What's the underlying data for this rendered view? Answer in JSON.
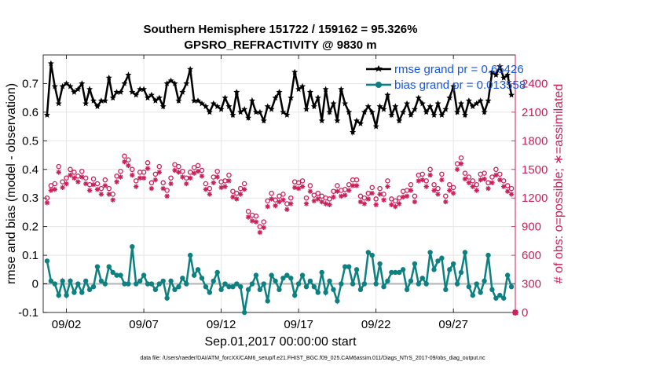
{
  "chart_data": {
    "type": "line",
    "title": "Southern Hemisphere 151722 / 159162 = 95.326%",
    "subtitle": "GPSRO_REFRACTIVITY @ 9830 m",
    "xlabel": "Sep.01,2017 00:00:00 start",
    "ylabel_left": "rmse and bias (model - observation)",
    "ylabel_right": "# of obs: o=possible; ∗=assimilated",
    "footnote": "data file: /Users/raeder/DAI/ATM_forcXX/CAM6_setup/f.e21.FHIST_BGC.f09_025.CAM6assim.011/Diags_NTrS_2017-09/obs_diag_output.nc",
    "xlim": [
      0.5,
      31
    ],
    "ylim_left": [
      -0.1,
      0.8
    ],
    "ylim_right": [
      0,
      2700
    ],
    "x_ticks": [
      2,
      7,
      12,
      17,
      22,
      27
    ],
    "x_tick_labels": [
      "09/02",
      "09/07",
      "09/12",
      "09/17",
      "09/22",
      "09/27"
    ],
    "y_ticks_left": [
      -0.1,
      0,
      0.1,
      0.2,
      0.3,
      0.4,
      0.5,
      0.6,
      0.7
    ],
    "y_tick_labels_left": [
      "-0.1",
      "0",
      "0.1",
      "0.2",
      "0.3",
      "0.4",
      "0.5",
      "0.6",
      "0.7"
    ],
    "y_ticks_right": [
      0,
      300,
      600,
      900,
      1200,
      1500,
      1800,
      2100,
      2400
    ],
    "y_tick_labels_right": [
      "0",
      "300",
      "600",
      "900",
      "1200",
      "1500",
      "1800",
      "2100",
      "2400"
    ],
    "x": [
      0.75,
      1.0,
      1.25,
      1.5,
      1.75,
      2.0,
      2.25,
      2.5,
      2.75,
      3.0,
      3.25,
      3.5,
      3.75,
      4.0,
      4.25,
      4.5,
      4.75,
      5.0,
      5.25,
      5.5,
      5.75,
      6.0,
      6.25,
      6.5,
      6.75,
      7.0,
      7.25,
      7.5,
      7.75,
      8.0,
      8.25,
      8.5,
      8.75,
      9.0,
      9.25,
      9.5,
      9.75,
      10.0,
      10.25,
      10.5,
      10.75,
      11.0,
      11.25,
      11.5,
      11.75,
      12.0,
      12.25,
      12.5,
      12.75,
      13.0,
      13.25,
      13.5,
      13.75,
      14.0,
      14.25,
      14.5,
      14.75,
      15.0,
      15.25,
      15.5,
      15.75,
      16.0,
      16.25,
      16.5,
      16.75,
      17.0,
      17.25,
      17.5,
      17.75,
      18.0,
      18.25,
      18.5,
      18.75,
      19.0,
      19.25,
      19.5,
      19.75,
      20.0,
      20.25,
      20.5,
      20.75,
      21.0,
      21.25,
      21.5,
      21.75,
      22.0,
      22.25,
      22.5,
      22.75,
      23.0,
      23.25,
      23.5,
      23.75,
      24.0,
      24.25,
      24.5,
      24.75,
      25.0,
      25.25,
      25.5,
      25.75,
      26.0,
      26.25,
      26.5,
      26.75,
      27.0,
      27.25,
      27.5,
      27.75,
      28.0,
      28.25,
      28.5,
      28.75,
      29.0,
      29.25,
      29.5,
      29.75,
      30.0,
      30.25,
      30.5,
      30.75
    ],
    "series": [
      {
        "name": "rmse grand pr = 0.65426",
        "color": "#000000",
        "marker": "star-filled",
        "values": [
          0.59,
          0.77,
          0.69,
          0.63,
          0.69,
          0.7,
          0.69,
          0.67,
          0.68,
          0.7,
          0.63,
          0.68,
          0.64,
          0.62,
          0.64,
          0.64,
          0.72,
          0.65,
          0.67,
          0.67,
          0.7,
          0.73,
          0.67,
          0.66,
          0.68,
          0.68,
          0.65,
          0.66,
          0.64,
          0.65,
          0.62,
          0.7,
          0.71,
          0.7,
          0.64,
          0.67,
          0.7,
          0.75,
          0.64,
          0.64,
          0.63,
          0.62,
          0.6,
          0.63,
          0.62,
          0.61,
          0.65,
          0.62,
          0.59,
          0.67,
          0.6,
          0.61,
          0.58,
          0.64,
          0.6,
          0.6,
          0.57,
          0.62,
          0.61,
          0.65,
          0.67,
          0.6,
          0.59,
          0.65,
          0.74,
          0.68,
          0.69,
          0.61,
          0.67,
          0.62,
          0.65,
          0.57,
          0.68,
          0.6,
          0.63,
          0.57,
          0.68,
          0.63,
          0.6,
          0.53,
          0.57,
          0.56,
          0.6,
          0.62,
          0.6,
          0.55,
          0.62,
          0.61,
          0.66,
          0.59,
          0.62,
          0.57,
          0.6,
          0.63,
          0.59,
          0.61,
          0.65,
          0.63,
          0.6,
          0.62,
          0.59,
          0.63,
          0.59,
          0.61,
          0.65,
          0.69,
          0.6,
          0.63,
          0.59,
          0.64,
          0.62,
          0.63,
          0.64,
          0.6,
          0.64,
          0.74,
          0.73,
          0.76,
          0.72,
          0.73,
          0.66
        ]
      },
      {
        "name": "bias grand pr = 0.013558",
        "color": "#0d8080",
        "marker": "circle-filled",
        "values": [
          0.08,
          0.01,
          0.0,
          -0.04,
          0.01,
          -0.04,
          0.01,
          -0.03,
          0.0,
          -0.03,
          0.01,
          -0.02,
          -0.01,
          0.06,
          0.01,
          0.0,
          0.06,
          0.04,
          0.03,
          0.03,
          0.0,
          0.0,
          0.13,
          0.0,
          0.01,
          0.03,
          0.0,
          0.0,
          -0.02,
          0.0,
          0.01,
          -0.05,
          0.01,
          -0.02,
          -0.01,
          0.02,
          0.0,
          0.1,
          0.03,
          0.05,
          0.02,
          -0.01,
          -0.03,
          0.01,
          0.04,
          -0.02,
          0.0,
          -0.01,
          -0.01,
          0.0,
          -0.01,
          -0.1,
          -0.02,
          0.0,
          0.03,
          -0.02,
          0.0,
          -0.06,
          0.03,
          0.01,
          -0.02,
          0.02,
          0.03,
          0.02,
          -0.04,
          0.0,
          0.03,
          -0.01,
          0.01,
          -0.01,
          -0.03,
          0.04,
          -0.03,
          0.01,
          -0.02,
          -0.06,
          0.0,
          0.06,
          0.06,
          0.0,
          0.05,
          -0.02,
          0.0,
          0.11,
          0.1,
          0.0,
          0.07,
          -0.01,
          0.01,
          0.04,
          0.04,
          0.04,
          0.05,
          -0.02,
          0.01,
          0.07,
          0.0,
          0.02,
          0.0,
          0.11,
          0.05,
          0.08,
          0.09,
          -0.02,
          0.05,
          0.07,
          0.0,
          0.04,
          0.11,
          -0.01,
          -0.04,
          0.0,
          -0.03,
          0.01,
          0.1,
          -0.02,
          -0.05,
          -0.04,
          -0.05,
          0.03,
          -0.01
        ]
      },
      {
        "name": "possible",
        "axis": "right",
        "color": "#cc1f5a",
        "marker": "open-circle",
        "values": [
          1200,
          1330,
          1350,
          1530,
          1370,
          1410,
          1500,
          1470,
          1430,
          1480,
          1410,
          1340,
          1400,
          1350,
          1300,
          1390,
          1300,
          1240,
          1430,
          1480,
          1640,
          1600,
          1500,
          1380,
          1470,
          1470,
          1570,
          1360,
          1450,
          1530,
          1360,
          1280,
          1410,
          1550,
          1530,
          1480,
          1410,
          1470,
          1520,
          1540,
          1490,
          1350,
          1300,
          1420,
          1480,
          1370,
          1380,
          1440,
          1270,
          1250,
          1300,
          1350,
          1060,
          1020,
          1010,
          900,
          950,
          1170,
          1250,
          1180,
          1220,
          1240,
          1140,
          1200,
          1370,
          1360,
          1380,
          1200,
          1330,
          1230,
          1250,
          1220,
          1200,
          1190,
          1270,
          1330,
          1280,
          1290,
          1340,
          1390,
          1390,
          1220,
          1200,
          1250,
          1310,
          1190,
          1300,
          1240,
          1380,
          1190,
          1170,
          1200,
          1270,
          1280,
          1340,
          1220,
          1440,
          1450,
          1380,
          1500,
          1340,
          1300,
          1450,
          1220,
          1340,
          1310,
          1560,
          1620,
          1460,
          1420,
          1380,
          1340,
          1450,
          1460,
          1360,
          1420,
          1500,
          1450,
          1380,
          1330,
          1300
        ]
      },
      {
        "name": "assimilated",
        "axis": "right",
        "color": "#cc1f5a",
        "marker": "asterisk",
        "values": [
          1150,
          1280,
          1290,
          1470,
          1310,
          1350,
          1440,
          1410,
          1370,
          1420,
          1350,
          1280,
          1340,
          1290,
          1240,
          1330,
          1240,
          1180,
          1370,
          1420,
          1580,
          1540,
          1440,
          1320,
          1410,
          1410,
          1510,
          1300,
          1390,
          1470,
          1300,
          1220,
          1350,
          1490,
          1470,
          1420,
          1350,
          1410,
          1460,
          1480,
          1430,
          1290,
          1240,
          1360,
          1420,
          1310,
          1320,
          1380,
          1210,
          1190,
          1240,
          1290,
          1000,
          960,
          950,
          840,
          890,
          1110,
          1190,
          1120,
          1160,
          1180,
          1080,
          1140,
          1310,
          1300,
          1320,
          1140,
          1270,
          1170,
          1190,
          1160,
          1140,
          1130,
          1210,
          1270,
          1220,
          1230,
          1280,
          1330,
          1330,
          1160,
          1140,
          1190,
          1250,
          1130,
          1240,
          1180,
          1320,
          1130,
          1110,
          1140,
          1210,
          1220,
          1280,
          1160,
          1380,
          1390,
          1320,
          1440,
          1280,
          1240,
          1390,
          1160,
          1280,
          1250,
          1500,
          1560,
          1400,
          1360,
          1320,
          1280,
          1390,
          1400,
          1300,
          1360,
          1440,
          1390,
          1320,
          1270,
          1240
        ]
      }
    ],
    "final_point": {
      "x": 31,
      "value": 0,
      "axis": "right",
      "color": "#cc1f5a"
    },
    "legend_location": "top-right",
    "grid": true
  }
}
